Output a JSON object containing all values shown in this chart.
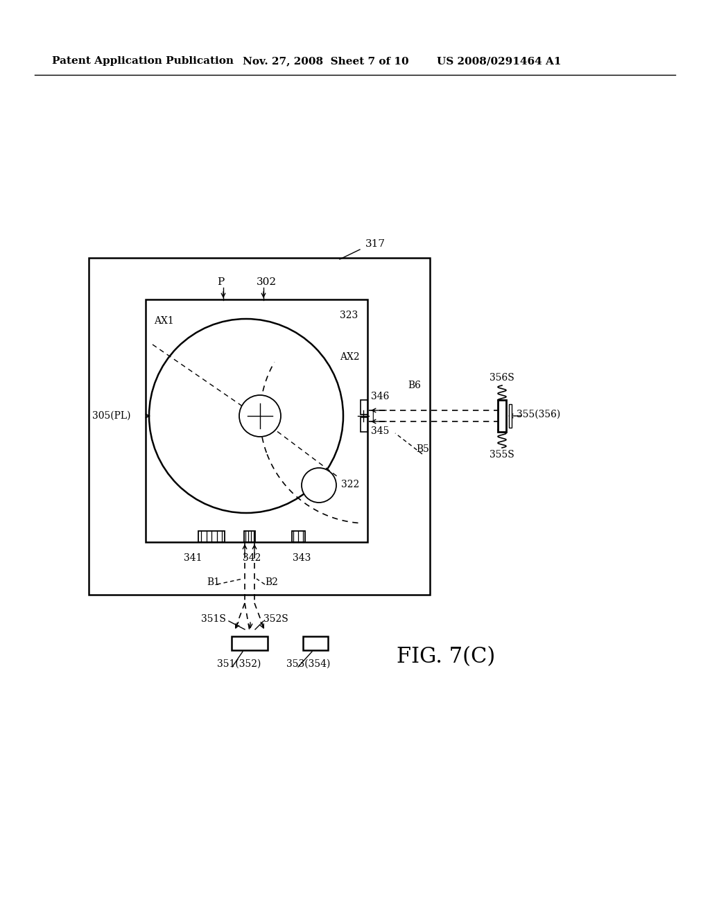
{
  "bg_color": "#ffffff",
  "header_left": "Patent Application Publication",
  "header_mid": "Nov. 27, 2008  Sheet 7 of 10",
  "header_right": "US 2008/0291464 A1",
  "fig_label": "FIG. 7(C)",
  "label_317": "317",
  "label_302": "302",
  "label_P": "P",
  "label_AX1": "AX1",
  "label_AX2": "AX2",
  "label_305PL": "305(PL)",
  "label_322": "322",
  "label_323": "323",
  "label_341": "341",
  "label_342": "342",
  "label_343": "343",
  "label_345": "345",
  "label_346": "346",
  "label_351S": "351S",
  "label_352S": "352S",
  "label_351_352": "351(352)",
  "label_353_354": "353(354)",
  "label_355_356": "355(356)",
  "label_355S": "355S",
  "label_356S": "356S",
  "label_B1": "B1",
  "label_B2": "B2",
  "label_B5": "B5",
  "label_B6": "B6"
}
